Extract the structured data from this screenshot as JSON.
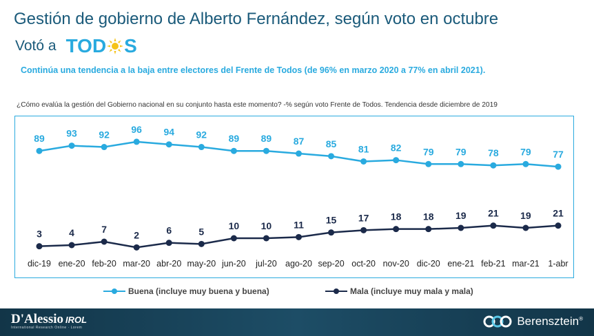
{
  "header": {
    "title": "Gestión de gobierno de Alberto Fernández, según voto en octubre",
    "subtitle_prefix": "Votó a",
    "logo": {
      "text_left": "TOD",
      "text_right": "S",
      "icon": "sun-icon",
      "color": "#29aadf"
    }
  },
  "headline": "Continúa una tendencia a la baja entre electores del Frente de Todos (de 96% en marzo 2020 a 77% en abril 2021).",
  "question": "¿Cómo evalúa la gestión del Gobierno nacional en su conjunto hasta este momento? -% según voto Frente de Todos. Tendencia desde diciembre de 2019",
  "chart_data": {
    "type": "line",
    "categories": [
      "dic-19",
      "ene-20",
      "feb-20",
      "mar-20",
      "abr-20",
      "may-20",
      "jun-20",
      "jul-20",
      "ago-20",
      "sep-20",
      "oct-20",
      "nov-20",
      "dic-20",
      "ene-21",
      "feb-21",
      "mar-21",
      "1-abr"
    ],
    "series": [
      {
        "name": "Buena (incluye muy buena y buena)",
        "color": "#29aadf",
        "values": [
          89,
          93,
          92,
          96,
          94,
          92,
          89,
          89,
          87,
          85,
          81,
          82,
          79,
          79,
          78,
          79,
          77
        ]
      },
      {
        "name": "Mala (incluye muy mala y mala)",
        "color": "#1b2a4a",
        "values": [
          3,
          4,
          7,
          2,
          6,
          5,
          10,
          10,
          11,
          15,
          17,
          18,
          18,
          19,
          21,
          19,
          21
        ]
      }
    ],
    "grid": false,
    "legend": "bottom",
    "data_labels": true
  },
  "footer": {
    "left_brand": "D'Alessio",
    "left_brand_suffix": "IROL",
    "left_tagline": "International Research Online · Lorem",
    "right_brand": "Berensztein",
    "right_mark": "®",
    "right_icon": "berensztein-logo-icon"
  },
  "colors": {
    "accent": "#29aadf",
    "dark": "#1b2a4a",
    "title": "#1a5a7a",
    "footer": "#1d4d66"
  }
}
